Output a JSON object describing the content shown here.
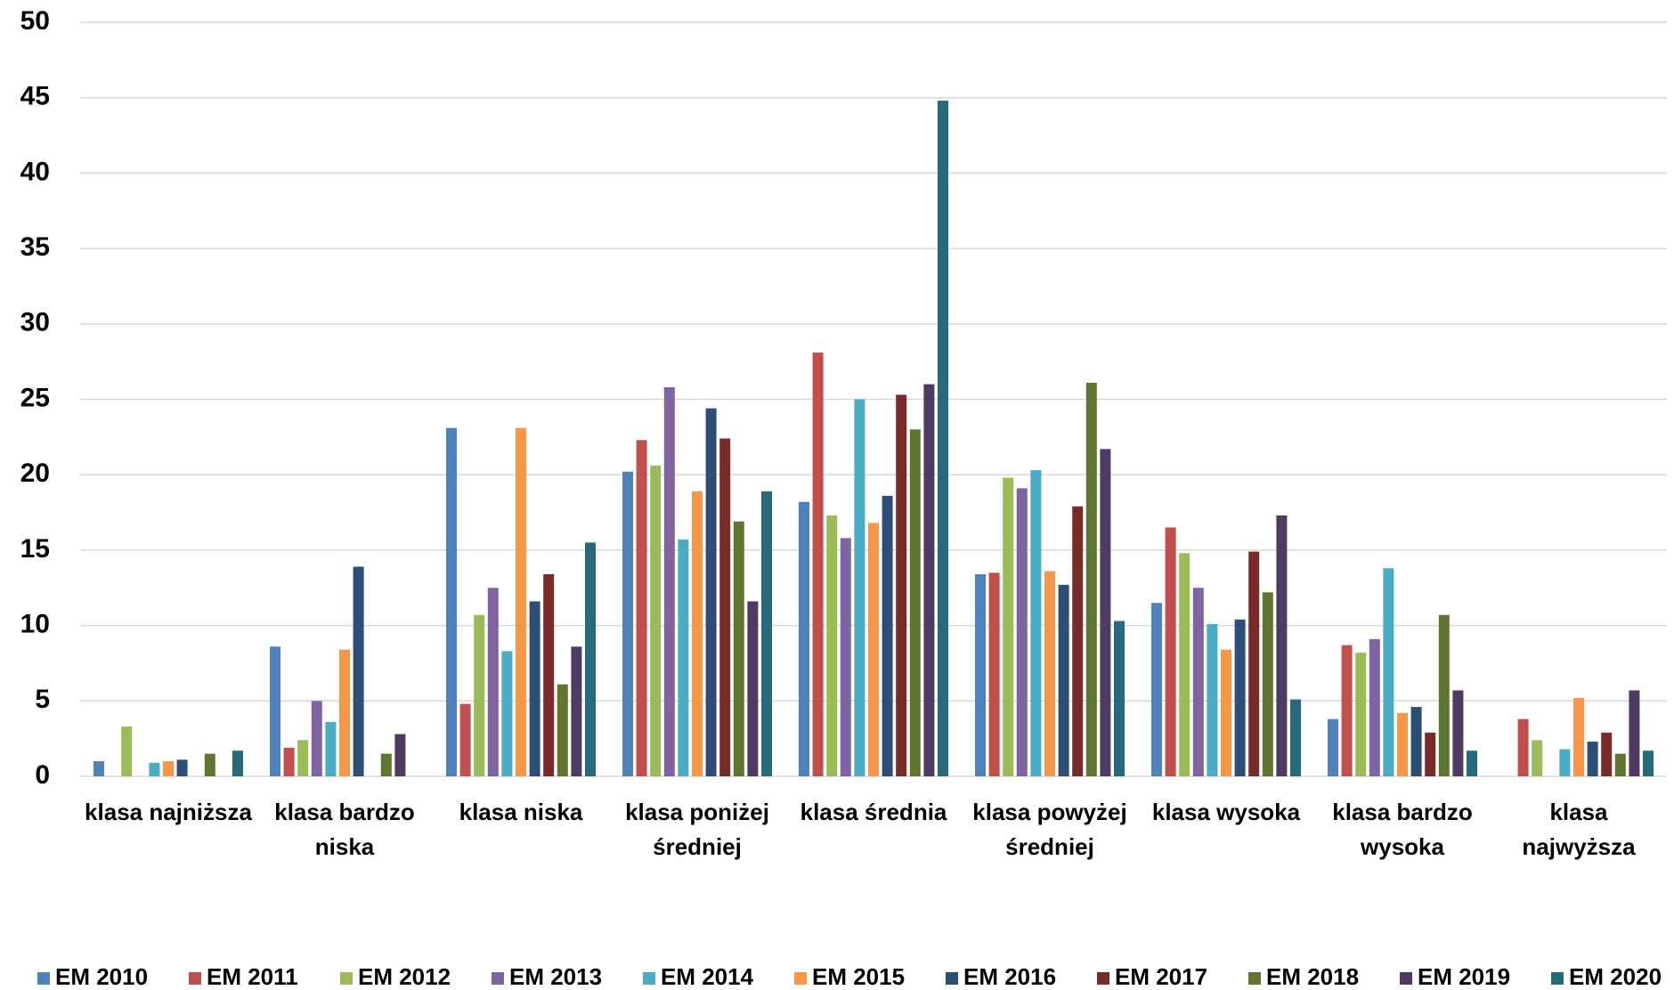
{
  "chart_data": {
    "type": "bar",
    "categories": [
      "klasa najniższa",
      "klasa bardzo niska",
      "klasa niska",
      "klasa poniżej średniej",
      "klasa średnia",
      "klasa powyżej średniej",
      "klasa wysoka",
      "klasa bardzo wysoka",
      "klasa najwyższa"
    ],
    "series": [
      {
        "name": "EM 2010",
        "color": "#4f81bd",
        "values": [
          1.0,
          8.6,
          23.1,
          20.2,
          18.2,
          13.4,
          11.5,
          3.8,
          null
        ]
      },
      {
        "name": "EM 2011",
        "color": "#c0504d",
        "values": [
          null,
          1.9,
          4.8,
          22.3,
          28.1,
          13.5,
          16.5,
          8.7,
          3.8
        ]
      },
      {
        "name": "EM 2012",
        "color": "#9bbb59",
        "values": [
          3.3,
          2.4,
          10.7,
          20.6,
          17.3,
          19.8,
          14.8,
          8.2,
          2.4
        ]
      },
      {
        "name": "EM 2013",
        "color": "#8064a2",
        "values": [
          null,
          5.0,
          12.5,
          25.8,
          15.8,
          19.1,
          12.5,
          9.1,
          null
        ]
      },
      {
        "name": "EM 2014",
        "color": "#4bacc6",
        "values": [
          0.9,
          3.6,
          8.3,
          15.7,
          25.0,
          20.3,
          10.1,
          13.8,
          1.8
        ]
      },
      {
        "name": "EM 2015",
        "color": "#f79646",
        "values": [
          1.0,
          8.4,
          23.1,
          18.9,
          16.8,
          13.6,
          8.4,
          4.2,
          5.2
        ]
      },
      {
        "name": "EM 2016",
        "color": "#2c4d75",
        "values": [
          1.1,
          13.9,
          11.6,
          24.4,
          18.6,
          12.7,
          10.4,
          4.6,
          2.3
        ]
      },
      {
        "name": "EM 2017",
        "color": "#772c2a",
        "values": [
          null,
          null,
          13.4,
          22.4,
          25.3,
          17.9,
          14.9,
          2.9,
          2.9
        ]
      },
      {
        "name": "EM 2018",
        "color": "#5f7530",
        "values": [
          1.5,
          1.5,
          6.1,
          16.9,
          23.0,
          26.1,
          12.2,
          10.7,
          1.5
        ]
      },
      {
        "name": "EM 2019",
        "color": "#4d3b62",
        "values": [
          null,
          2.8,
          8.6,
          11.6,
          26.0,
          21.7,
          17.3,
          5.7,
          5.7
        ]
      },
      {
        "name": "EM 2020",
        "color": "#276a7c",
        "values": [
          1.7,
          null,
          15.5,
          18.9,
          44.8,
          10.3,
          5.1,
          1.7,
          1.7
        ]
      }
    ],
    "ylim": [
      0,
      50
    ],
    "yticks": [
      0,
      5,
      10,
      15,
      20,
      25,
      30,
      35,
      40,
      45,
      50
    ],
    "grid": true,
    "legend": "bottom"
  }
}
